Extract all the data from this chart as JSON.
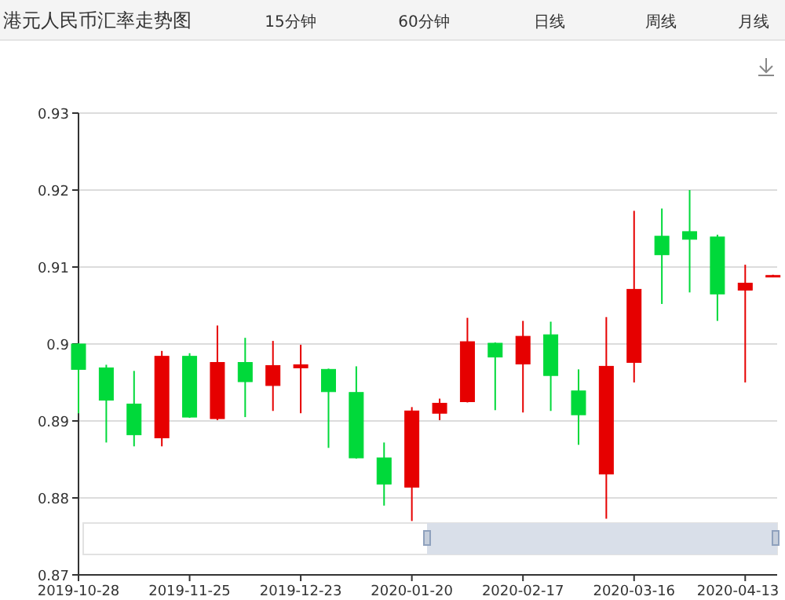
{
  "chart_data": {
    "type": "candlestick",
    "title": "港元人民币汇率走势图",
    "annotations": [
      "15分钟",
      "60分钟",
      "日线",
      "周线",
      "月线"
    ],
    "categories": [
      "2019-10-28",
      null,
      null,
      null,
      "2019-11-25",
      null,
      null,
      null,
      "2019-12-23",
      null,
      null,
      null,
      "2020-01-20",
      null,
      null,
      null,
      "2020-02-17",
      null,
      null,
      null,
      "2020-03-16",
      null,
      null,
      null,
      "2020-04-13",
      null
    ],
    "ohlc": [
      [
        0.9,
        0.9001,
        0.891,
        0.8967
      ],
      [
        0.8969,
        0.8973,
        0.8872,
        0.8927
      ],
      [
        0.8922,
        0.8965,
        0.8867,
        0.8882
      ],
      [
        0.8878,
        0.8991,
        0.8867,
        0.8984
      ],
      [
        0.8984,
        0.8988,
        0.8904,
        0.8905
      ],
      [
        0.8903,
        0.9024,
        0.8901,
        0.8976
      ],
      [
        0.8976,
        0.9008,
        0.8905,
        0.8951
      ],
      [
        0.8946,
        0.9004,
        0.8913,
        0.8972
      ],
      [
        0.8969,
        0.8999,
        0.891,
        0.8973
      ],
      [
        0.8967,
        0.8968,
        0.8865,
        0.8938
      ],
      [
        0.8937,
        0.8971,
        0.8851,
        0.8852
      ],
      [
        0.8852,
        0.8872,
        0.879,
        0.8818
      ],
      [
        0.8814,
        0.8918,
        0.877,
        0.8913
      ],
      [
        0.891,
        0.8929,
        0.8901,
        0.8923
      ],
      [
        0.8925,
        0.9034,
        0.8924,
        0.9003
      ],
      [
        0.9001,
        0.9002,
        0.8914,
        0.8983
      ],
      [
        0.8974,
        0.903,
        0.8911,
        0.901
      ],
      [
        0.9012,
        0.9029,
        0.8913,
        0.8959
      ],
      [
        0.8939,
        0.8967,
        0.8869,
        0.8908
      ],
      [
        0.8831,
        0.9035,
        0.8773,
        0.8971
      ],
      [
        0.8976,
        0.9173,
        0.895,
        0.9071
      ],
      [
        0.914,
        0.9176,
        0.9052,
        0.9116
      ],
      [
        0.9146,
        0.92,
        0.9067,
        0.9136
      ],
      [
        0.9139,
        0.9142,
        0.903,
        0.9065
      ],
      [
        0.907,
        0.9103,
        0.895,
        0.9079
      ],
      [
        0.9087,
        0.909,
        0.9087,
        0.9089
      ]
    ],
    "colors": [
      "#00d93a",
      "#00d93a",
      "#00d93a",
      "#e60000",
      "#00d93a",
      "#e60000",
      "#00d93a",
      "#e60000",
      "#e60000",
      "#00d93a",
      "#00d93a",
      "#00d93a",
      "#e60000",
      "#e60000",
      "#e60000",
      "#00d93a",
      "#e60000",
      "#00d93a",
      "#00d93a",
      "#e60000",
      "#e60000",
      "#00d93a",
      "#00d93a",
      "#00d93a",
      "#e60000",
      "#e60000"
    ],
    "ylim": [
      0.87,
      0.93
    ],
    "yticks": [
      0.87,
      0.88,
      0.89,
      0.9,
      0.91,
      0.92,
      0.93
    ],
    "grid": "y"
  }
}
